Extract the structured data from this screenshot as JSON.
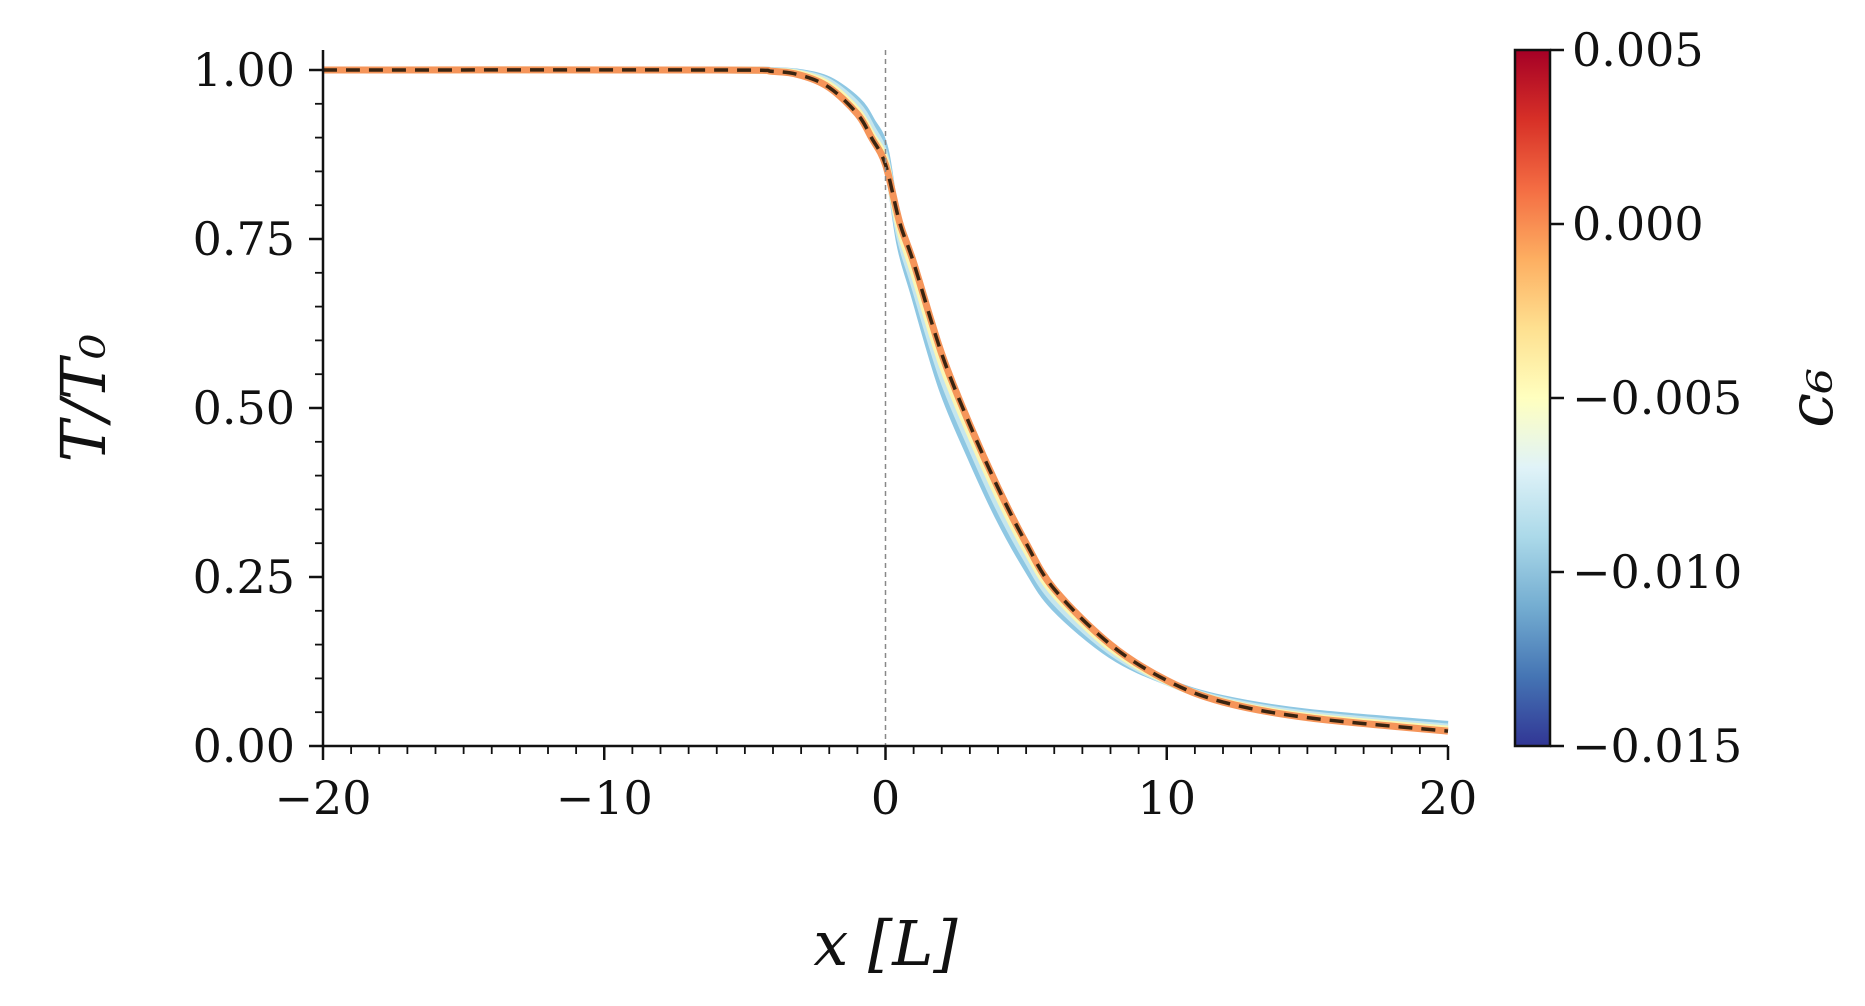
{
  "chart_data": {
    "type": "line",
    "xlabel": "x [L]",
    "ylabel": "T/T₀",
    "xlim": [
      -20,
      20
    ],
    "ylim": [
      0,
      1.03
    ],
    "xticks": [
      -20,
      -10,
      0,
      10,
      20
    ],
    "xtick_labels": [
      "−20",
      "−10",
      "0",
      "10",
      "20"
    ],
    "yticks": [
      0,
      0.25,
      0.5,
      0.75,
      1.0
    ],
    "ytick_labels": [
      "0.00",
      "0.25",
      "0.50",
      "0.75",
      "1.00"
    ],
    "vline_x": 0,
    "grid": false,
    "colorbar": {
      "label": "c₆",
      "range": [
        -0.015,
        0.005
      ],
      "ticks": [
        0.005,
        0.0,
        -0.005,
        -0.01,
        -0.015
      ],
      "tick_labels": [
        "0.005",
        "0.000",
        "−0.005",
        "−0.010",
        "−0.015"
      ],
      "colormap_stops": [
        "#313695",
        "#4575b4",
        "#74add1",
        "#abd9e9",
        "#e0f3f8",
        "#ffffbf",
        "#fee090",
        "#fdae61",
        "#f46d43",
        "#d73027",
        "#a50026"
      ]
    },
    "series": [
      {
        "c6": -0.0115,
        "color": "#8ec7e3",
        "x": [
          -20,
          -6,
          -4,
          -3,
          -2,
          -1,
          -0.5,
          0,
          0.5,
          1,
          2,
          3,
          4,
          5,
          6,
          8,
          10,
          12,
          15,
          20
        ],
        "y": [
          1.0,
          1.0,
          0.999,
          0.996,
          0.985,
          0.955,
          0.925,
          0.88,
          0.745,
          0.67,
          0.53,
          0.43,
          0.34,
          0.265,
          0.205,
          0.135,
          0.095,
          0.07,
          0.05,
          0.032
        ]
      },
      {
        "c6": -0.0085,
        "color": "#c5e6ee",
        "x": [
          -20,
          -6,
          -4,
          -3,
          -2,
          -1,
          -0.5,
          0,
          0.5,
          1,
          2,
          3,
          4,
          5,
          6,
          8,
          10,
          12,
          15,
          20
        ],
        "y": [
          1.0,
          1.0,
          0.999,
          0.995,
          0.982,
          0.948,
          0.915,
          0.87,
          0.755,
          0.685,
          0.548,
          0.447,
          0.355,
          0.278,
          0.215,
          0.14,
          0.095,
          0.068,
          0.047,
          0.028
        ]
      },
      {
        "c6": -0.0055,
        "color": "#fbf6b3",
        "x": [
          -20,
          -6,
          -4,
          -3,
          -2,
          -1,
          -0.5,
          0,
          0.5,
          1,
          2,
          3,
          4,
          5,
          6,
          8,
          10,
          12,
          15,
          20
        ],
        "y": [
          1.0,
          1.0,
          0.998,
          0.994,
          0.978,
          0.94,
          0.905,
          0.865,
          0.765,
          0.7,
          0.565,
          0.462,
          0.37,
          0.29,
          0.225,
          0.145,
          0.096,
          0.066,
          0.044,
          0.025
        ]
      },
      {
        "c6": 0.0,
        "color": "#f5955a",
        "x": [
          -20,
          -6,
          -4,
          -3,
          -2,
          -1,
          -0.5,
          0,
          0.5,
          1,
          2,
          3,
          4,
          5,
          6,
          8,
          10,
          12,
          15,
          20
        ],
        "y": [
          1.0,
          1.0,
          0.998,
          0.992,
          0.974,
          0.935,
          0.9,
          0.86,
          0.775,
          0.715,
          0.58,
          0.475,
          0.382,
          0.3,
          0.232,
          0.15,
          0.097,
          0.065,
          0.042,
          0.022
        ]
      },
      {
        "c6": 0.0,
        "color": "#3a2410",
        "dashed": true,
        "x": [
          -20,
          -6,
          -4,
          -3,
          -2,
          -1,
          -0.5,
          0,
          0.5,
          1,
          2,
          3,
          4,
          5,
          6,
          8,
          10,
          12,
          15,
          20
        ],
        "y": [
          1.0,
          1.0,
          0.998,
          0.992,
          0.974,
          0.935,
          0.9,
          0.86,
          0.775,
          0.715,
          0.58,
          0.475,
          0.382,
          0.3,
          0.232,
          0.15,
          0.097,
          0.065,
          0.042,
          0.022
        ]
      }
    ]
  }
}
